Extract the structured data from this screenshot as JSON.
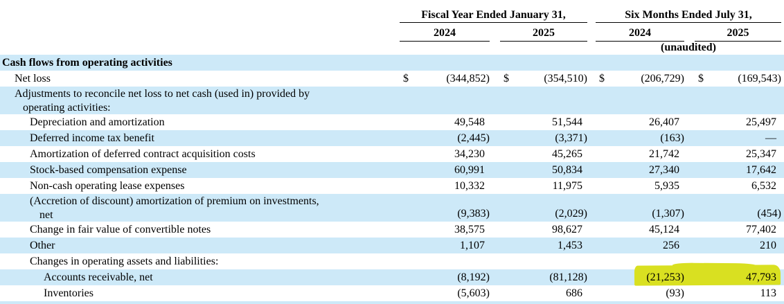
{
  "table": {
    "currency_symbol": "$",
    "header": {
      "group1": "Fiscal Year Ended January 31,",
      "group2": "Six Months Ended July 31,",
      "years": [
        "2024",
        "2025",
        "2024",
        "2025"
      ],
      "unaudited": "(unaudited)"
    },
    "rows": [
      {
        "label": "Cash flows from operating activities",
        "indent": 3,
        "shade": "blue",
        "bold": true,
        "values": [
          "",
          "",
          "",
          ""
        ]
      },
      {
        "label": "Net loss",
        "indent": 21,
        "shade": "white",
        "dollar": true,
        "values": [
          "(344,852)",
          "(354,510)",
          "(206,729)",
          "(169,543)"
        ]
      },
      {
        "lines": [
          "Adjustments to reconcile net loss to net cash (used in) provided by",
          "operating activities:"
        ],
        "indents": [
          21,
          33
        ],
        "shade": "blue",
        "values": [
          "",
          "",
          "",
          ""
        ]
      },
      {
        "label": "Depreciation and amortization",
        "indent": 43,
        "shade": "white",
        "values": [
          "49,548",
          "51,544",
          "26,407",
          "25,497"
        ]
      },
      {
        "label": "Deferred income tax benefit",
        "indent": 43,
        "shade": "blue",
        "values": [
          "(2,445)",
          "(3,371)",
          "(163)",
          "—"
        ]
      },
      {
        "label": "Amortization of deferred contract acquisition costs",
        "indent": 43,
        "shade": "white",
        "values": [
          "34,230",
          "45,265",
          "21,742",
          "25,347"
        ]
      },
      {
        "label": "Stock-based compensation expense",
        "indent": 43,
        "shade": "blue",
        "values": [
          "60,991",
          "50,834",
          "27,340",
          "17,642"
        ]
      },
      {
        "label": "Non-cash operating lease expenses",
        "indent": 43,
        "shade": "white",
        "values": [
          "10,332",
          "11,975",
          "5,935",
          "6,532"
        ]
      },
      {
        "lines": [
          "(Accretion of discount) amortization of premium on investments,",
          "net"
        ],
        "indents": [
          43,
          57
        ],
        "shade": "blue",
        "values": [
          "(9,383)",
          "(2,029)",
          "(1,307)",
          "(454)"
        ]
      },
      {
        "label": "Change in fair value of convertible notes",
        "indent": 43,
        "shade": "white",
        "values": [
          "38,575",
          "98,627",
          "45,124",
          "77,402"
        ]
      },
      {
        "label": "Other",
        "indent": 43,
        "shade": "blue",
        "values": [
          "1,107",
          "1,453",
          "256",
          "210"
        ]
      },
      {
        "label": "Changes in operating assets and liabilities:",
        "indent": 43,
        "shade": "white",
        "values": [
          "",
          "",
          "",
          ""
        ]
      },
      {
        "label": "Accounts receivable, net",
        "indent": 63,
        "shade": "blue",
        "values": [
          "(8,192)",
          "(81,128)",
          "(21,253)",
          "47,793"
        ],
        "highlight": [
          2,
          3
        ]
      },
      {
        "label": "Inventories",
        "indent": 63,
        "shade": "white",
        "values": [
          "(5,603)",
          "686",
          "(93)",
          "113"
        ]
      }
    ]
  },
  "annotations": {
    "marker_highlight": {
      "row": "Accounts receivable, net",
      "highlighted_values": [
        "(21,253)",
        "47,793"
      ]
    }
  },
  "colors": {
    "row_stripe_blue": "#cde9f8",
    "highlight_yellow": "#d9e021",
    "text": "#000000",
    "rule": "#000000"
  }
}
